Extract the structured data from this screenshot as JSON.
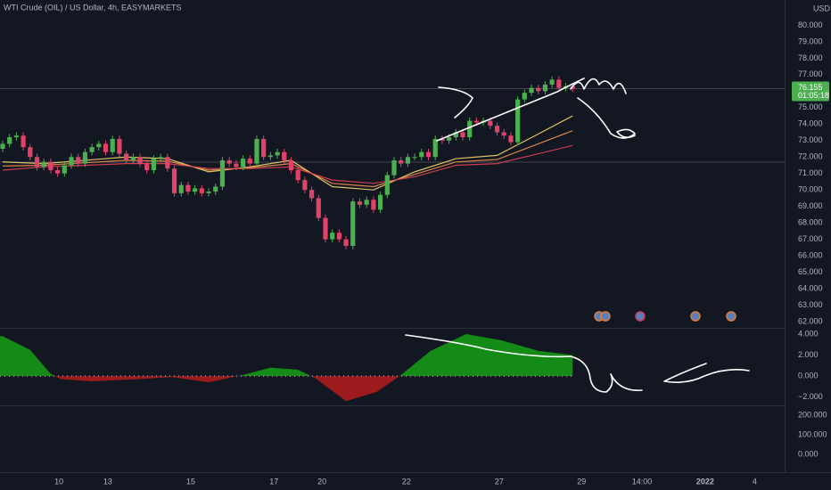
{
  "chart_data": [
    {
      "type": "candlestick",
      "title": "WTI Crude (OIL) / US Dollar, 4h, EASYMARKETS",
      "currency": "USD",
      "up_color": "#4caf50",
      "down_color": "#e0436a",
      "xlim": [
        0,
        114
      ],
      "ylim": [
        61.62,
        81.54
      ],
      "xticks": [
        {
          "value": 8.2,
          "label": "10"
        },
        {
          "value": 15.3,
          "label": "13"
        },
        {
          "value": 27.4,
          "label": "15"
        },
        {
          "value": 39.5,
          "label": "17"
        },
        {
          "value": 46.5,
          "label": "20"
        },
        {
          "value": 58.8,
          "label": "22"
        },
        {
          "value": 72.3,
          "label": "27"
        },
        {
          "value": 84.3,
          "label": "29"
        },
        {
          "value": 93.1,
          "label": "14:00"
        },
        {
          "value": 102.3,
          "label": "2022"
        },
        {
          "value": 109.5,
          "label": "4"
        }
      ],
      "yticks": [
        {
          "value": 62,
          "label": "62.000"
        },
        {
          "value": 63,
          "label": "63.000"
        },
        {
          "value": 64,
          "label": "64.000"
        },
        {
          "value": 65,
          "label": "65.000"
        },
        {
          "value": 66,
          "label": "66.000"
        },
        {
          "value": 67,
          "label": "67.000"
        },
        {
          "value": 68,
          "label": "68.000"
        },
        {
          "value": 69,
          "label": "69.000"
        },
        {
          "value": 70,
          "label": "70.000"
        },
        {
          "value": 71,
          "label": "71.000"
        },
        {
          "value": 72,
          "label": "72.000"
        },
        {
          "value": 73,
          "label": "73.000"
        },
        {
          "value": 74,
          "label": "74.000"
        },
        {
          "value": 75,
          "label": "75.000"
        },
        {
          "value": 76,
          "label": "76.000"
        },
        {
          "value": 77,
          "label": "77.000"
        },
        {
          "value": 78,
          "label": "78.000"
        },
        {
          "value": 79,
          "label": "79.000"
        },
        {
          "value": 80,
          "label": "80.000"
        }
      ],
      "open": [
        72.5,
        72.8,
        73.2,
        73.3,
        72.6,
        72.0,
        71.4,
        71.7,
        71.2,
        71.0,
        71.5,
        72.0,
        71.6,
        72.3,
        72.6,
        72.8,
        72.3,
        73.1,
        72.2,
        71.8,
        72.0,
        71.6,
        71.2,
        71.9,
        72.0,
        71.3,
        69.8,
        70.3,
        69.9,
        70.1,
        69.8,
        69.9,
        70.2,
        71.8,
        71.6,
        71.4,
        71.9,
        71.6,
        73.1,
        72.0,
        72.1,
        72.3,
        71.8,
        71.2,
        70.6,
        70.0,
        69.5,
        68.3,
        67.0,
        67.4,
        67.0,
        66.6,
        69.3,
        69.1,
        69.4,
        68.8,
        69.7,
        70.9,
        71.8,
        71.6,
        72.0,
        72.0,
        72.3,
        72.0,
        73.1,
        73.0,
        73.2,
        73.5,
        73.2,
        74.2,
        74.1,
        74.2,
        73.9,
        73.5,
        73.3,
        72.9,
        75.5,
        75.9,
        76.2,
        76.0,
        76.4,
        76.7,
        76.2,
        76.3
      ],
      "high": [
        73.0,
        73.4,
        73.5,
        73.5,
        72.8,
        72.2,
        71.9,
        71.9,
        71.4,
        71.7,
        72.2,
        72.2,
        72.5,
        72.8,
        73.0,
        73.0,
        73.3,
        73.3,
        72.4,
        72.2,
        72.2,
        71.8,
        72.1,
        72.2,
        72.2,
        71.5,
        70.5,
        70.5,
        70.3,
        70.3,
        70.1,
        70.4,
        72.0,
        72.0,
        71.8,
        72.1,
        72.1,
        73.3,
        73.3,
        72.3,
        72.5,
        72.5,
        72.0,
        71.4,
        70.8,
        70.2,
        69.7,
        68.5,
        67.6,
        67.6,
        67.2,
        69.5,
        69.5,
        69.6,
        69.6,
        69.9,
        71.1,
        72.0,
        72.0,
        72.2,
        72.2,
        72.5,
        72.5,
        73.3,
        73.3,
        73.4,
        73.7,
        73.7,
        74.4,
        74.4,
        74.4,
        74.4,
        74.1,
        73.7,
        73.5,
        75.7,
        76.1,
        76.4,
        76.4,
        76.6,
        76.9,
        76.9,
        76.5,
        76.5
      ],
      "low": [
        72.3,
        72.6,
        73.0,
        72.4,
        71.8,
        71.2,
        71.2,
        71.0,
        70.8,
        70.8,
        71.3,
        71.4,
        71.4,
        72.1,
        72.4,
        72.1,
        72.1,
        72.0,
        71.6,
        71.6,
        71.4,
        71.0,
        71.0,
        71.7,
        71.1,
        69.6,
        69.6,
        69.7,
        69.7,
        69.6,
        69.6,
        69.7,
        70.0,
        71.4,
        71.2,
        71.2,
        71.4,
        71.4,
        71.8,
        71.8,
        71.9,
        71.6,
        71.0,
        70.4,
        69.8,
        69.3,
        68.1,
        66.8,
        66.8,
        66.8,
        66.4,
        66.4,
        68.9,
        68.9,
        68.6,
        68.6,
        69.5,
        70.7,
        71.4,
        71.4,
        71.8,
        71.8,
        71.8,
        71.8,
        72.8,
        72.8,
        73.0,
        73.0,
        73.0,
        73.9,
        73.9,
        73.7,
        73.3,
        73.1,
        72.7,
        72.7,
        75.3,
        75.7,
        75.8,
        75.8,
        76.2,
        76.0,
        76.0,
        75.95
      ],
      "close": [
        72.8,
        73.2,
        73.3,
        72.6,
        72.0,
        71.4,
        71.7,
        71.2,
        71.0,
        71.5,
        72.0,
        71.6,
        72.3,
        72.6,
        72.8,
        72.3,
        73.1,
        72.2,
        71.8,
        72.0,
        71.6,
        71.2,
        71.9,
        72.0,
        71.3,
        69.8,
        70.3,
        69.9,
        70.1,
        69.8,
        69.9,
        70.2,
        71.8,
        71.6,
        71.4,
        71.9,
        71.6,
        73.1,
        72.0,
        72.1,
        72.3,
        71.8,
        71.2,
        70.6,
        70.0,
        69.5,
        68.3,
        67.0,
        67.4,
        67.0,
        66.6,
        69.3,
        69.1,
        69.4,
        68.8,
        69.7,
        70.9,
        71.8,
        71.6,
        72.0,
        72.0,
        72.3,
        72.0,
        73.1,
        73.0,
        73.2,
        73.5,
        73.2,
        74.2,
        74.1,
        74.2,
        73.9,
        73.5,
        73.3,
        72.9,
        75.5,
        75.9,
        76.2,
        76.0,
        76.4,
        76.7,
        76.2,
        76.3,
        76.155
      ],
      "overlay_x": [
        0,
        6,
        12,
        18,
        24,
        30,
        36,
        42,
        48,
        54,
        60,
        66,
        72,
        78,
        83
      ],
      "overlays": [
        {
          "color": "#f5d76e",
          "values": [
            71.7,
            71.6,
            71.8,
            72.0,
            71.9,
            71.1,
            71.4,
            71.8,
            70.2,
            70.0,
            71.1,
            71.9,
            72.1,
            73.4,
            74.5
          ]
        },
        {
          "color": "#f0904a",
          "values": [
            71.45,
            71.5,
            71.65,
            71.8,
            71.75,
            71.2,
            71.35,
            71.6,
            70.4,
            70.2,
            70.95,
            71.7,
            71.85,
            72.8,
            73.6
          ]
        },
        {
          "color": "#e0435a",
          "values": [
            71.2,
            71.4,
            71.5,
            71.6,
            71.6,
            71.3,
            71.3,
            71.4,
            70.6,
            70.4,
            70.8,
            71.5,
            71.6,
            72.2,
            72.7
          ]
        }
      ],
      "hlines": [
        71.69
      ],
      "last_price": 76.155,
      "countdown": "01:05:18",
      "last_color": "#4caf50"
    },
    {
      "type": "area",
      "xlim": [
        0,
        114
      ],
      "ylim": [
        -2.8,
        4.6
      ],
      "yticks": [
        {
          "value": 4,
          "label": "4.000"
        },
        {
          "value": 2,
          "label": "2.000"
        },
        {
          "value": 0,
          "label": "0.000"
        },
        {
          "value": -2,
          "label": "−2.000"
        }
      ],
      "x": [
        0,
        4,
        7,
        8.5,
        13,
        19.5,
        24.7,
        30,
        35,
        39,
        43,
        45.5,
        50,
        54.5,
        58,
        62.3,
        67.5,
        72.7,
        78,
        83
      ],
      "values": [
        3.8,
        2.5,
        0.2,
        -0.3,
        -0.5,
        -0.3,
        -0.1,
        -0.6,
        0.1,
        0.8,
        0.6,
        -0.2,
        -2.4,
        -1.5,
        0.1,
        2.4,
        4.0,
        3.4,
        2.4,
        2.0
      ],
      "positive_color": "#14a014",
      "negative_color": "#b51c1c"
    },
    {
      "type": "pane",
      "ylim": [
        -91,
        250
      ],
      "yticks": [
        {
          "value": 200,
          "label": "200.000"
        },
        {
          "value": 100,
          "label": "100.000"
        },
        {
          "value": 0,
          "label": "0.000"
        }
      ]
    }
  ]
}
